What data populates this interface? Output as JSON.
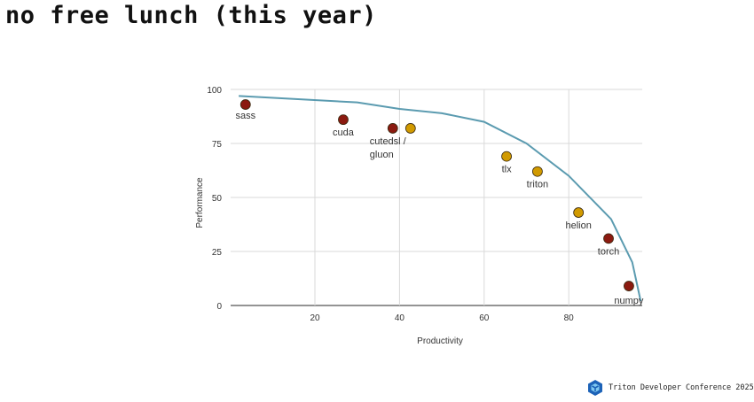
{
  "slide": {
    "title": "no free lunch (this year)",
    "footer": "Triton Developer Conference 2025"
  },
  "colors": {
    "closed": "#8b1a10",
    "open": "#d19a00",
    "frontier": "#5b9bb0",
    "grid": "#d9d9d9"
  },
  "chart_data": {
    "type": "scatter",
    "title": "",
    "xlabel": "Productivity",
    "ylabel": "Performance",
    "xlim": [
      0,
      98
    ],
    "ylim": [
      0,
      100
    ],
    "xticks": [
      20,
      40,
      60,
      80
    ],
    "yticks": [
      0,
      25,
      50,
      75,
      100
    ],
    "grid": true,
    "points": [
      {
        "label": "sass",
        "x": 3.6,
        "y": 93,
        "group": "closed"
      },
      {
        "label": "cuda",
        "x": 26.7,
        "y": 86,
        "group": "closed"
      },
      {
        "label": "cutedsl /",
        "x": 38.4,
        "y": 82,
        "group": "closed"
      },
      {
        "label": "gluon",
        "x": 42.6,
        "y": 82,
        "group": "open"
      },
      {
        "label": "tlx",
        "x": 65.3,
        "y": 69,
        "group": "open"
      },
      {
        "label": "triton",
        "x": 72.6,
        "y": 62,
        "group": "open"
      },
      {
        "label": "helion",
        "x": 82.3,
        "y": 43,
        "group": "open"
      },
      {
        "label": "torch",
        "x": 89.4,
        "y": 31,
        "group": "closed"
      },
      {
        "label": "numpy",
        "x": 94.2,
        "y": 9,
        "group": "closed"
      }
    ],
    "frontier_line": [
      {
        "x": 2,
        "y": 97
      },
      {
        "x": 30,
        "y": 94
      },
      {
        "x": 40,
        "y": 91
      },
      {
        "x": 50,
        "y": 89
      },
      {
        "x": 60,
        "y": 85
      },
      {
        "x": 70,
        "y": 75
      },
      {
        "x": 80,
        "y": 60
      },
      {
        "x": 90,
        "y": 40
      },
      {
        "x": 95,
        "y": 20
      },
      {
        "x": 97,
        "y": 2
      }
    ]
  }
}
